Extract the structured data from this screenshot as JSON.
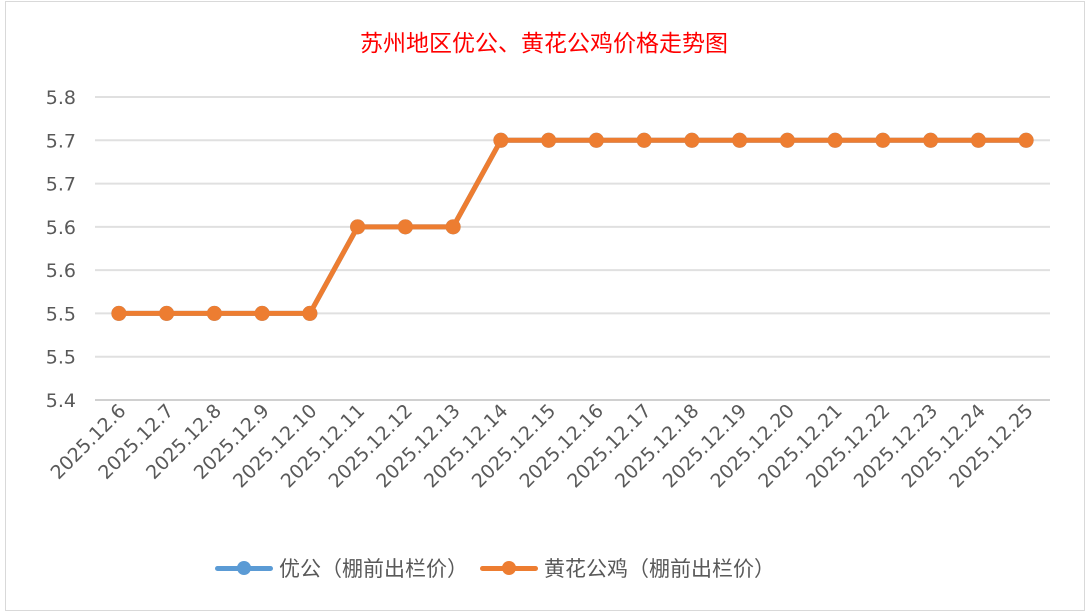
{
  "chart_data": {
    "type": "line",
    "title": "苏州地区优公、黄花公鸡价格走势图",
    "xlabel": "",
    "ylabel": "",
    "categories": [
      "2025.12.6",
      "2025.12.7",
      "2025.12.8",
      "2025.12.9",
      "2025.12.10",
      "2025.12.11",
      "2025.12.12",
      "2025.12.13",
      "2025.12.14",
      "2025.12.15",
      "2025.12.16",
      "2025.12.17",
      "2025.12.18",
      "2025.12.19",
      "2025.12.20",
      "2025.12.21",
      "2025.12.22",
      "2025.12.23",
      "2025.12.24",
      "2025.12.25"
    ],
    "series": [
      {
        "name": "优公（棚前出栏价）",
        "color": "#5b9bd5",
        "values": [
          5.5,
          5.5,
          5.5,
          5.5,
          5.5,
          5.6,
          5.6,
          5.6,
          5.7,
          5.7,
          5.7,
          5.7,
          5.7,
          5.7,
          5.7,
          5.7,
          5.7,
          5.7,
          5.7,
          5.7
        ]
      },
      {
        "name": "黄花公鸡（棚前出栏价）",
        "color": "#ed7d31",
        "values": [
          5.5,
          5.5,
          5.5,
          5.5,
          5.5,
          5.6,
          5.6,
          5.6,
          5.7,
          5.7,
          5.7,
          5.7,
          5.7,
          5.7,
          5.7,
          5.7,
          5.7,
          5.7,
          5.7,
          5.7
        ]
      }
    ],
    "ylim": [
      5.4,
      5.75
    ],
    "yticks": [
      5.4,
      5.45,
      5.5,
      5.55,
      5.6,
      5.65,
      5.7,
      5.75
    ],
    "ytick_labels": [
      "5.4",
      "5.5",
      "5.5",
      "5.6",
      "5.6",
      "5.7",
      "5.7",
      "5.8"
    ],
    "grid": true,
    "legend": "bottom"
  }
}
